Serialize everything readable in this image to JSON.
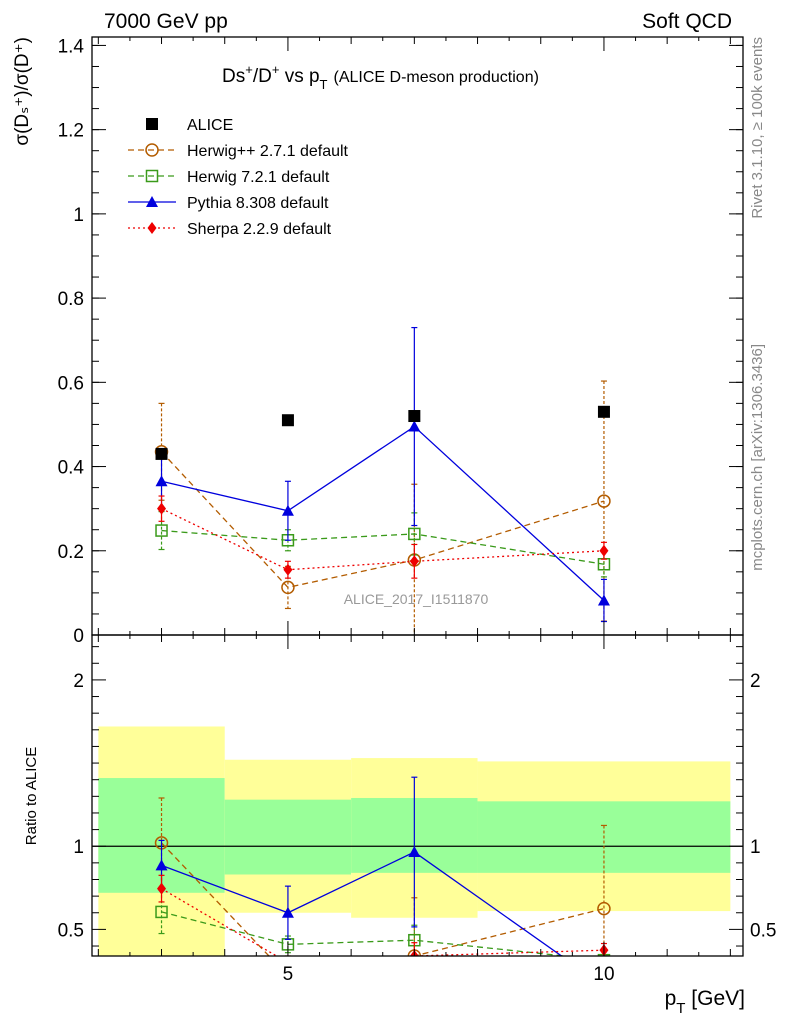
{
  "header": {
    "left": "7000 GeV pp",
    "right": "Soft QCD"
  },
  "side_labels": {
    "rivet": "Rivet 3.1.10, ≥ 100k events",
    "mcplots": "mcplots.cern.ch [arXiv:1306.3436]"
  },
  "watermark": "ALICE_2017_I1511870",
  "chart_data": [
    {
      "type": "scatter",
      "title": "Ds⁺/D⁺ vs p_T (ALICE D-meson production)",
      "title_parts": {
        "main": "Ds",
        "sup": "+",
        "mid": "/D",
        "sup2": "+",
        "vs": " vs p",
        "sub": "T",
        "note": "(ALICE D-meson production)"
      },
      "ylabel": "σ(Dₛ⁺)/σ(D⁺)",
      "xlabel": "p_T [GeV]",
      "xlim": [
        1.9,
        12.2
      ],
      "ylim": [
        0,
        1.42
      ],
      "y_ticks": [
        0,
        0.2,
        0.4,
        0.6,
        0.8,
        1,
        1.2,
        1.4
      ],
      "y_tick_labels": [
        "0",
        "0.2",
        "0.4",
        "0.6",
        "0.8",
        "1",
        "1.2",
        "1.4"
      ],
      "legend_placement": "top-left",
      "series": [
        {
          "name": "ALICE",
          "color": "#000000",
          "marker": "square-filled",
          "line": "none",
          "x": [
            3,
            5,
            7,
            10
          ],
          "y": [
            0.43,
            0.51,
            0.52,
            0.53
          ]
        },
        {
          "name": "Herwig++ 2.7.1 default",
          "color": "#b35c00",
          "marker": "circle-open",
          "line": "dashed",
          "x": [
            3,
            5,
            7,
            10
          ],
          "y": [
            0.435,
            0.113,
            0.178,
            0.318
          ],
          "err": [
            0.115,
            0.05,
            0.18,
            0.285
          ]
        },
        {
          "name": "Herwig 7.2.1 default",
          "color": "#3a9a1a",
          "marker": "square-open",
          "line": "dashed",
          "x": [
            3,
            5,
            7,
            10
          ],
          "y": [
            0.248,
            0.225,
            0.24,
            0.168
          ],
          "err": [
            0.045,
            0.025,
            0.05,
            0.03
          ]
        },
        {
          "name": "Pythia 8.308 default",
          "color": "#0000dd",
          "marker": "triangle-filled",
          "line": "solid",
          "x": [
            3,
            5,
            7,
            10
          ],
          "y": [
            0.365,
            0.295,
            0.495,
            0.082
          ],
          "err": [
            0.065,
            0.07,
            0.235,
            0.05
          ]
        },
        {
          "name": "Sherpa 2.2.9 default",
          "color": "#ee0000",
          "marker": "diamond-filled",
          "line": "dotted",
          "x": [
            3,
            5,
            7,
            10
          ],
          "y": [
            0.3,
            0.155,
            0.175,
            0.2
          ],
          "err": [
            0.03,
            0.02,
            0.04,
            0.02
          ]
        }
      ]
    },
    {
      "type": "line",
      "ylabel": "Ratio to ALICE",
      "xlabel": "p_T [GeV]",
      "xlim": [
        1.9,
        12.2
      ],
      "ylim": [
        0.34,
        2.27
      ],
      "x_ticks": [
        5,
        10
      ],
      "x_tick_labels": [
        "5",
        "10"
      ],
      "y_ticks": [
        0.5,
        1,
        2
      ],
      "y_tick_labels": [
        "0.5",
        "1",
        "2"
      ],
      "reference_line": 1,
      "bands": [
        {
          "x": [
            2,
            4
          ],
          "inner": [
            0.72,
            1.41
          ],
          "outer": [
            0.34,
            1.72
          ]
        },
        {
          "x": [
            4,
            6
          ],
          "inner": [
            0.83,
            1.28
          ],
          "outer": [
            0.6,
            1.52
          ]
        },
        {
          "x": [
            6,
            8
          ],
          "inner": [
            0.84,
            1.29
          ],
          "outer": [
            0.57,
            1.53
          ]
        },
        {
          "x": [
            8,
            12
          ],
          "inner": [
            0.84,
            1.27
          ],
          "outer": [
            0.61,
            1.51
          ]
        }
      ],
      "band_colors": {
        "inner": "#99ff99",
        "outer": "#ffff99"
      },
      "series": [
        {
          "name": "Herwig++ 2.7.1 default",
          "color": "#b35c00",
          "marker": "circle-open",
          "line": "dashed",
          "x": [
            3,
            5,
            7,
            10
          ],
          "y": [
            1.02,
            0.22,
            0.34,
            0.625
          ],
          "err": [
            0.27,
            0.1,
            0.35,
            0.5
          ]
        },
        {
          "name": "Herwig 7.2.1 default",
          "color": "#3a9a1a",
          "marker": "square-open",
          "line": "dashed",
          "x": [
            3,
            5,
            7,
            10
          ],
          "y": [
            0.605,
            0.41,
            0.435,
            0.315
          ],
          "err": [
            0.13,
            0.05,
            0.09,
            0.06
          ]
        },
        {
          "name": "Pythia 8.308 default",
          "color": "#0000dd",
          "marker": "triangle-filled",
          "line": "solid",
          "x": [
            3,
            5,
            7,
            10
          ],
          "y": [
            0.885,
            0.6,
            0.965,
            0.16
          ],
          "err": [
            0.15,
            0.16,
            0.45,
            0.1
          ]
        },
        {
          "name": "Sherpa 2.2.9 default",
          "color": "#ee0000",
          "marker": "diamond-filled",
          "line": "dotted",
          "x": [
            3,
            5,
            7,
            10
          ],
          "y": [
            0.745,
            0.3,
            0.34,
            0.375
          ],
          "err": [
            0.08,
            0.04,
            0.08,
            0.04
          ]
        }
      ]
    }
  ]
}
